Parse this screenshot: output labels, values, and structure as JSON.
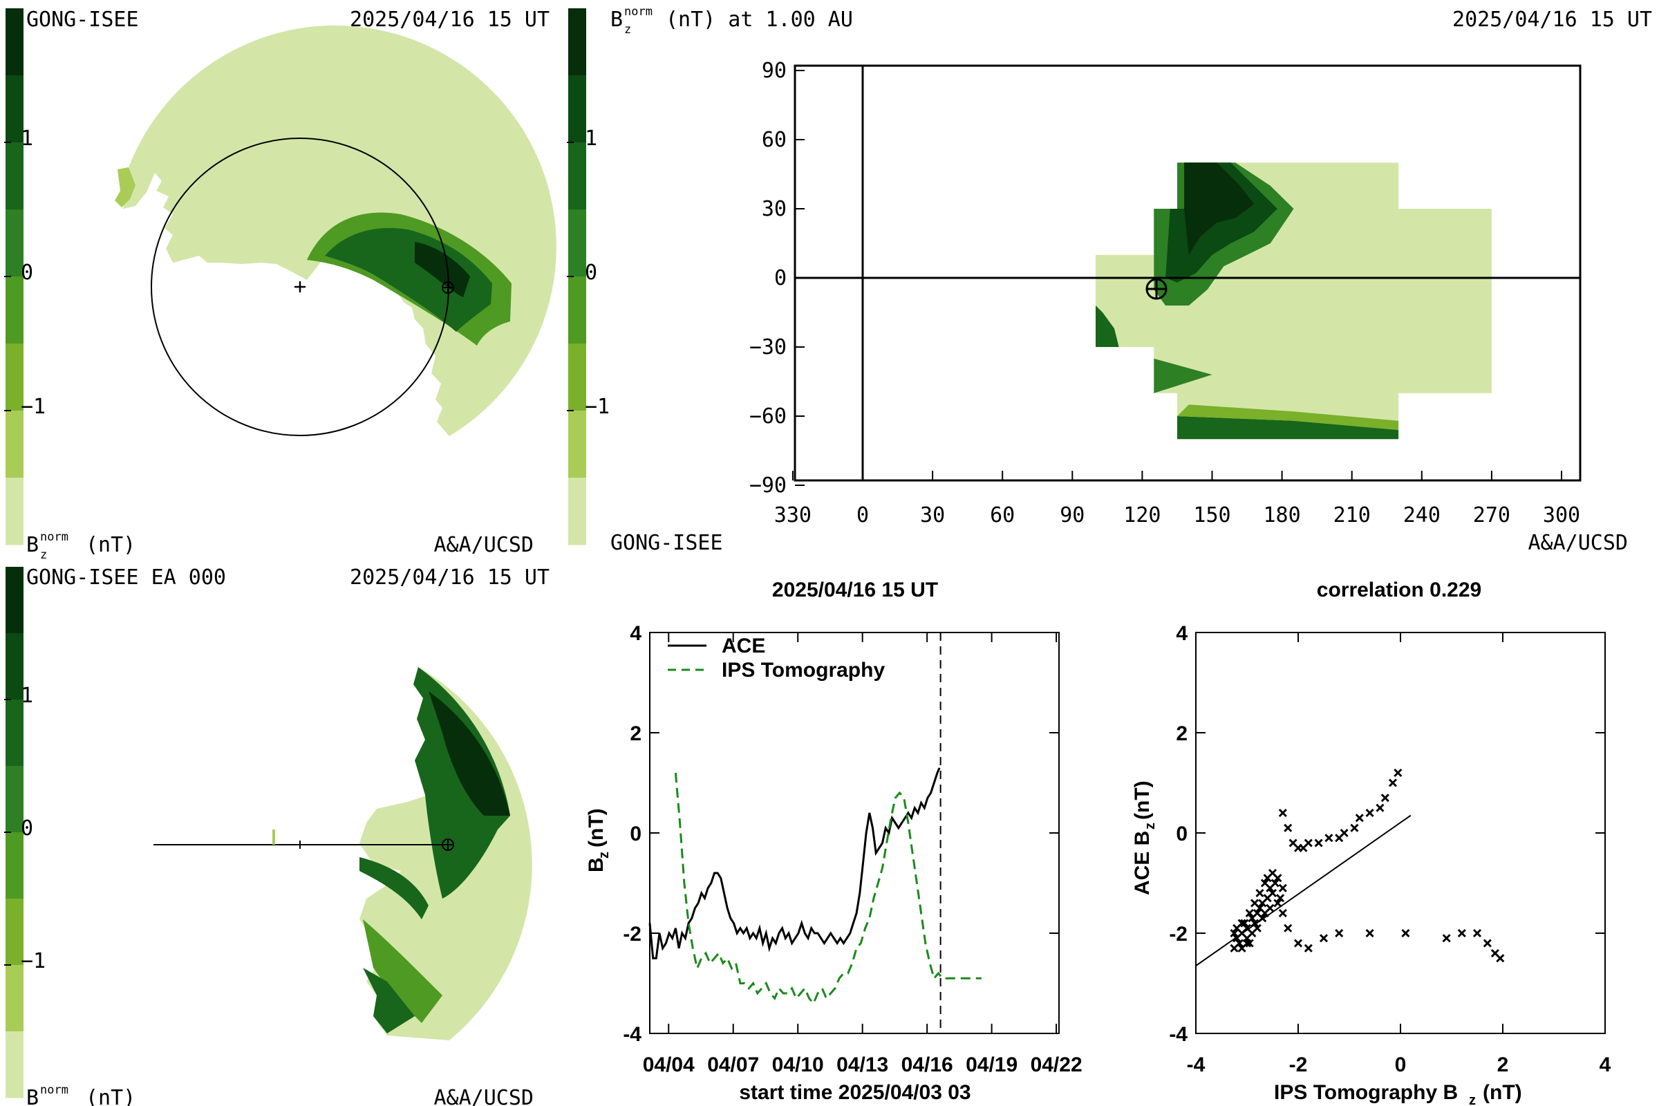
{
  "colors": {
    "levels": [
      "#d3e6a8",
      "#a9cc57",
      "#7ab02a",
      "#4f9a22",
      "#2d8024",
      "#17661c",
      "#0b4a12",
      "#072e0a"
    ],
    "ace_line": "#000000",
    "ips_line": "#1a8a1a"
  },
  "colorbar": {
    "tick_labels": [
      "1",
      "0",
      "−1"
    ],
    "unit_label": "B",
    "unit_sub": "z",
    "unit_sup": "norm",
    "unit_suffix": "(nT)"
  },
  "panels": {
    "top_left": {
      "title_left": "GONG-ISEE",
      "title_right": "2025/04/16 15 UT",
      "credit": "A&A/UCSD"
    },
    "top_right": {
      "title_left_suffix": "(nT) at 1.00 AU",
      "title_right": "2025/04/16 15 UT",
      "bottom_left": "GONG-ISEE",
      "credit": "A&A/UCSD",
      "x_tick_labels": [
        "330",
        "0",
        "30",
        "60",
        "90",
        "120",
        "150",
        "180",
        "210",
        "240",
        "270",
        "300"
      ],
      "y_tick_labels": [
        "90",
        "60",
        "30",
        "0",
        "−30",
        "−60",
        "−90"
      ]
    },
    "bottom_left": {
      "title_left": "GONG-ISEE EA 000",
      "title_right": "2025/04/16 15 UT",
      "credit": "A&A/UCSD"
    }
  },
  "chart_data": [
    {
      "type": "line",
      "title": "2025/04/16 15 UT",
      "xlabel": "start time 2025/04/03 03",
      "ylabel": "B",
      "ylabel_sub": "z",
      "ylabel_suffix": "(nT)",
      "x_tick_labels": [
        "04/04",
        "04/07",
        "04/10",
        "04/13",
        "04/16",
        "04/19",
        "04/22"
      ],
      "y_tick_labels": [
        "4",
        "2",
        "0",
        "-2",
        "-4"
      ],
      "xlim_days": [
        0,
        19
      ],
      "ylim": [
        -4,
        4
      ],
      "vline_day": 13.5,
      "series": [
        {
          "name": "ACE",
          "style": "solid",
          "x": [
            0,
            0.15,
            0.3,
            0.45,
            0.6,
            0.75,
            0.9,
            1.05,
            1.2,
            1.35,
            1.5,
            1.65,
            1.8,
            1.95,
            2.1,
            2.25,
            2.4,
            2.55,
            2.7,
            2.85,
            3.0,
            3.15,
            3.3,
            3.45,
            3.6,
            3.75,
            3.9,
            4.05,
            4.2,
            4.35,
            4.5,
            4.65,
            4.8,
            4.95,
            5.1,
            5.25,
            5.4,
            5.55,
            5.7,
            5.85,
            6.0,
            6.15,
            6.3,
            6.45,
            6.6,
            6.75,
            6.9,
            7.05,
            7.2,
            7.35,
            7.5,
            7.65,
            7.8,
            7.95,
            8.1,
            8.25,
            8.4,
            8.55,
            8.7,
            8.85,
            9.0,
            9.15,
            9.3,
            9.45,
            9.6,
            9.75,
            9.9,
            10.05,
            10.2,
            10.35,
            10.5,
            10.65,
            10.8,
            10.95,
            11.1,
            11.25,
            11.4,
            11.55,
            11.7,
            11.85,
            12.0,
            12.15,
            12.3,
            12.45,
            12.6,
            12.75,
            12.9,
            13.05,
            13.2,
            13.35,
            13.45
          ],
          "y": [
            -1.8,
            -2.5,
            -2.5,
            -2.0,
            -2.3,
            -2.2,
            -2.0,
            -2.1,
            -1.9,
            -2.3,
            -2.0,
            -2.1,
            -1.8,
            -1.7,
            -1.5,
            -1.4,
            -1.2,
            -1.3,
            -1.1,
            -1.0,
            -0.8,
            -0.8,
            -0.9,
            -1.2,
            -1.5,
            -1.7,
            -1.8,
            -2.0,
            -1.9,
            -2.0,
            -1.9,
            -2.1,
            -2.0,
            -2.1,
            -1.9,
            -2.2,
            -2.0,
            -2.3,
            -2.1,
            -2.2,
            -2.0,
            -1.9,
            -2.1,
            -2.0,
            -2.2,
            -2.1,
            -2.0,
            -1.8,
            -2.0,
            -2.1,
            -1.9,
            -2.0,
            -2.0,
            -2.1,
            -2.2,
            -2.1,
            -2.0,
            -2.1,
            -2.2,
            -2.1,
            -2.2,
            -2.1,
            -2.0,
            -1.8,
            -1.6,
            -1.2,
            -0.6,
            0.0,
            0.4,
            0.1,
            -0.4,
            -0.3,
            -0.2,
            0.1,
            0.0,
            0.3,
            0.2,
            0.1,
            0.2,
            0.3,
            0.4,
            0.3,
            0.5,
            0.4,
            0.6,
            0.5,
            0.7,
            0.8,
            1.0,
            1.2,
            1.3
          ]
        },
        {
          "name": "IPS Tomography",
          "style": "dashed",
          "x": [
            1.2,
            1.4,
            1.6,
            1.8,
            2.0,
            2.2,
            2.4,
            2.6,
            2.8,
            3.0,
            3.2,
            3.4,
            3.6,
            3.8,
            4.0,
            4.2,
            4.4,
            4.6,
            4.8,
            5.0,
            5.2,
            5.4,
            5.6,
            5.8,
            6.0,
            6.2,
            6.4,
            6.6,
            6.8,
            7.0,
            7.2,
            7.4,
            7.6,
            7.8,
            8.0,
            8.2,
            8.4,
            8.6,
            8.8,
            9.0,
            9.2,
            9.4,
            9.6,
            9.8,
            10.0,
            10.2,
            10.4,
            10.6,
            10.8,
            11.0,
            11.2,
            11.4,
            11.6,
            11.8,
            12.0,
            12.2,
            12.4,
            12.6,
            12.8,
            13.0,
            13.2,
            13.4,
            13.6,
            13.8,
            14.0,
            14.2,
            14.4,
            14.6,
            14.8,
            15.0,
            15.2,
            15.4
          ],
          "y": [
            1.2,
            0.2,
            -1.0,
            -1.8,
            -2.3,
            -2.7,
            -2.5,
            -2.4,
            -2.6,
            -2.5,
            -2.4,
            -2.6,
            -2.5,
            -2.7,
            -2.6,
            -3.0,
            -3.0,
            -3.1,
            -3.0,
            -3.2,
            -3.1,
            -3.0,
            -3.2,
            -3.3,
            -3.1,
            -3.2,
            -3.2,
            -3.1,
            -3.3,
            -3.2,
            -3.1,
            -3.3,
            -3.4,
            -3.2,
            -3.1,
            -3.3,
            -3.2,
            -3.1,
            -2.9,
            -2.8,
            -2.8,
            -2.6,
            -2.3,
            -2.2,
            -1.9,
            -1.7,
            -1.3,
            -1.0,
            -0.7,
            -0.2,
            0.3,
            0.7,
            0.8,
            0.7,
            0.2,
            -0.4,
            -1.0,
            -1.6,
            -2.2,
            -2.6,
            -2.9,
            -2.8,
            -2.9,
            -2.9,
            -2.9,
            -2.9,
            -2.9,
            -2.9,
            -2.9,
            -2.9,
            -2.9,
            -2.9
          ]
        }
      ]
    },
    {
      "type": "scatter",
      "title": "correlation 0.229",
      "xlabel": "IPS Tomography B",
      "xlabel_sub": "z",
      "xlabel_suffix": "(nT)",
      "ylabel": "ACE B",
      "ylabel_sub": "z",
      "ylabel_suffix": "(nT)",
      "x_tick_labels": [
        "-4",
        "-2",
        "0",
        "2",
        "4"
      ],
      "y_tick_labels": [
        "4",
        "2",
        "0",
        "-2",
        "-4"
      ],
      "xlim": [
        -4,
        4
      ],
      "ylim": [
        -4,
        4
      ],
      "fit_line": {
        "x": [
          -4.0,
          0.2
        ],
        "y": [
          -2.65,
          0.35
        ]
      },
      "points": [
        [
          -3.25,
          -2.0
        ],
        [
          -3.2,
          -2.1
        ],
        [
          -3.15,
          -2.2
        ],
        [
          -3.1,
          -2.3
        ],
        [
          -3.2,
          -1.9
        ],
        [
          -3.1,
          -2.0
        ],
        [
          -3.05,
          -1.8
        ],
        [
          -3.0,
          -2.1
        ],
        [
          -3.0,
          -1.9
        ],
        [
          -2.95,
          -2.2
        ],
        [
          -2.9,
          -1.7
        ],
        [
          -2.85,
          -1.8
        ],
        [
          -2.9,
          -2.0
        ],
        [
          -2.8,
          -1.9
        ],
        [
          -2.8,
          -1.6
        ],
        [
          -2.75,
          -1.5
        ],
        [
          -2.7,
          -1.7
        ],
        [
          -2.7,
          -1.4
        ],
        [
          -2.65,
          -1.6
        ],
        [
          -2.6,
          -1.3
        ],
        [
          -2.6,
          -0.9
        ],
        [
          -2.55,
          -1.1
        ],
        [
          -2.5,
          -1.2
        ],
        [
          -2.5,
          -0.8
        ],
        [
          -2.45,
          -1.0
        ],
        [
          -2.4,
          -1.4
        ],
        [
          -2.4,
          -0.9
        ],
        [
          -2.35,
          -1.3
        ],
        [
          -2.3,
          -1.1
        ],
        [
          -2.3,
          -1.6
        ],
        [
          -2.3,
          0.4
        ],
        [
          -2.2,
          0.1
        ],
        [
          -2.1,
          -0.2
        ],
        [
          -2.0,
          -0.3
        ],
        [
          -1.9,
          -0.3
        ],
        [
          -1.8,
          -0.2
        ],
        [
          -1.6,
          -0.2
        ],
        [
          -1.4,
          -0.1
        ],
        [
          -1.2,
          -0.1
        ],
        [
          -1.1,
          0.0
        ],
        [
          -0.9,
          0.1
        ],
        [
          -0.8,
          0.3
        ],
        [
          -0.6,
          0.4
        ],
        [
          -0.4,
          0.5
        ],
        [
          -0.3,
          0.7
        ],
        [
          -0.15,
          1.0
        ],
        [
          -0.05,
          1.2
        ],
        [
          -3.0,
          -2.2
        ],
        [
          -3.2,
          -2.1
        ],
        [
          -3.25,
          -2.3
        ],
        [
          -3.1,
          -1.8
        ],
        [
          -2.95,
          -1.6
        ],
        [
          -2.85,
          -1.4
        ],
        [
          -2.75,
          -1.2
        ],
        [
          -2.65,
          -1.0
        ],
        [
          -2.55,
          -1.5
        ],
        [
          -2.2,
          -1.9
        ],
        [
          -2.0,
          -2.2
        ],
        [
          -1.8,
          -2.3
        ],
        [
          -1.5,
          -2.1
        ],
        [
          -1.2,
          -2.0
        ],
        [
          -0.6,
          -2.0
        ],
        [
          0.1,
          -2.0
        ],
        [
          0.9,
          -2.1
        ],
        [
          1.2,
          -2.0
        ],
        [
          1.5,
          -2.0
        ],
        [
          1.7,
          -2.2
        ],
        [
          1.85,
          -2.4
        ],
        [
          1.95,
          -2.5
        ]
      ]
    }
  ]
}
